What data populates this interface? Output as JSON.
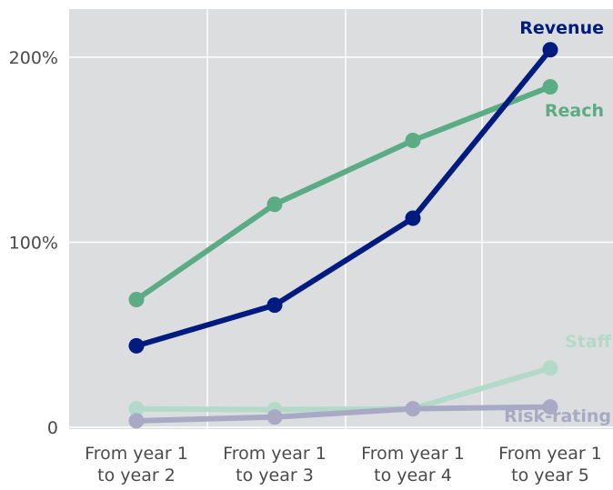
{
  "chart_data": {
    "type": "line",
    "categories": [
      [
        "From year 1",
        "to year 2"
      ],
      [
        "From year 1",
        "to year 3"
      ],
      [
        "From year 1",
        "to year 4"
      ],
      [
        "From year 1",
        "to year 5"
      ]
    ],
    "y_ticks": [
      {
        "value": 0,
        "label": "0"
      },
      {
        "value": 100,
        "label": "100%"
      },
      {
        "value": 200,
        "label": "200%"
      }
    ],
    "ylim": [
      -1,
      226
    ],
    "grid": true,
    "series": [
      {
        "name": "Staff",
        "color": "#b3dac8",
        "values": [
          10,
          9.5,
          10,
          32
        ]
      },
      {
        "name": "Risk-rating",
        "color": "#a9a9c6",
        "values": [
          3.5,
          5.5,
          10,
          11
        ]
      },
      {
        "name": "Reach",
        "color": "#5bab84",
        "values": [
          69,
          120.5,
          155,
          184
        ]
      },
      {
        "name": "Revenue",
        "color": "#001b80",
        "values": [
          44,
          66,
          113,
          204
        ]
      }
    ]
  }
}
